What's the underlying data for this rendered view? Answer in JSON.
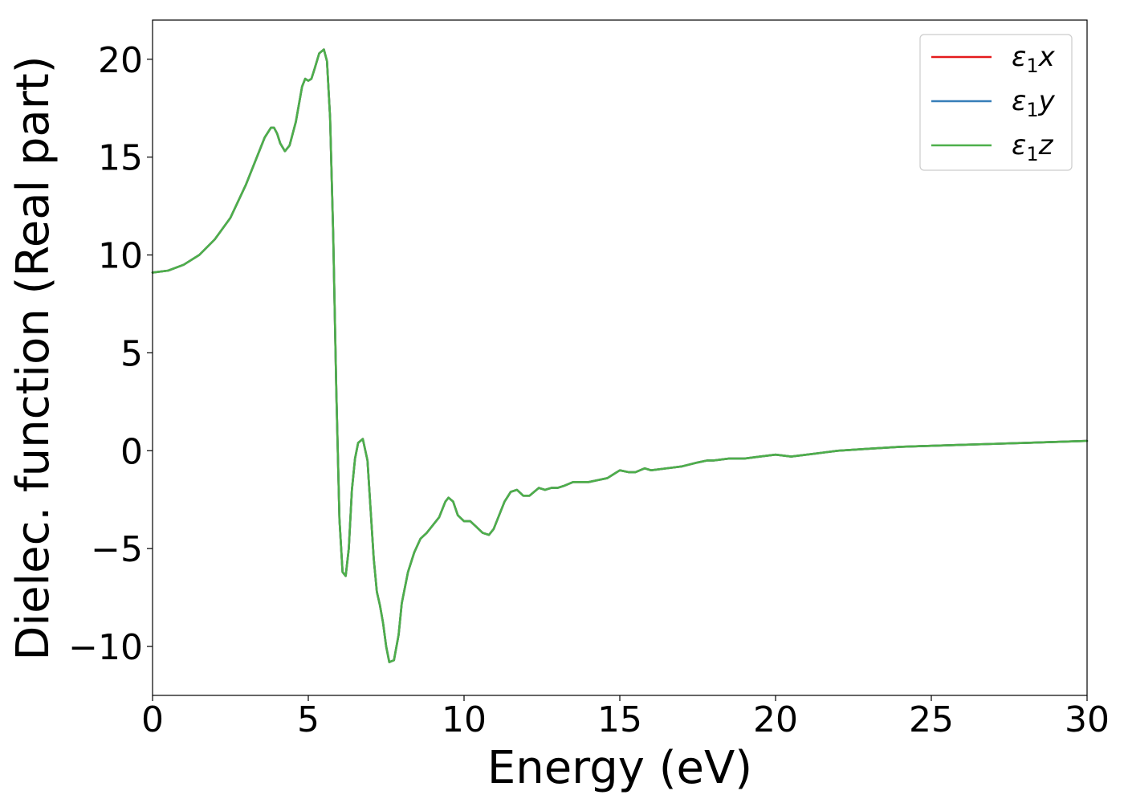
{
  "chart_data": {
    "type": "line",
    "title": "",
    "xlabel": "Energy (eV)",
    "ylabel": "Dielec. function (Real part)",
    "xlim": [
      0,
      30
    ],
    "ylim": [
      -12.5,
      22
    ],
    "xticks": [
      0,
      5,
      10,
      15,
      20,
      25,
      30
    ],
    "xtick_labels": [
      "0",
      "5",
      "10",
      "15",
      "20",
      "25",
      "30"
    ],
    "yticks": [
      -10,
      -5,
      0,
      5,
      10,
      15,
      20
    ],
    "ytick_labels": [
      "−10",
      "−5",
      "0",
      "5",
      "10",
      "15",
      "20"
    ],
    "grid": false,
    "legend_position": "top-right",
    "x": [
      0,
      0.5,
      1,
      1.5,
      2,
      2.5,
      3,
      3.3,
      3.6,
      3.8,
      3.9,
      4.0,
      4.1,
      4.25,
      4.4,
      4.6,
      4.8,
      4.9,
      5.0,
      5.1,
      5.2,
      5.35,
      5.5,
      5.6,
      5.7,
      5.8,
      5.9,
      6.0,
      6.1,
      6.2,
      6.3,
      6.4,
      6.5,
      6.6,
      6.75,
      6.9,
      7.0,
      7.1,
      7.2,
      7.3,
      7.4,
      7.5,
      7.6,
      7.75,
      7.9,
      8.0,
      8.2,
      8.4,
      8.6,
      8.8,
      9.0,
      9.2,
      9.4,
      9.5,
      9.65,
      9.8,
      10.0,
      10.2,
      10.4,
      10.6,
      10.8,
      10.95,
      11.1,
      11.3,
      11.5,
      11.7,
      11.9,
      12.1,
      12.4,
      12.6,
      12.8,
      13.0,
      13.2,
      13.5,
      13.8,
      14.0,
      14.3,
      14.6,
      15.0,
      15.3,
      15.5,
      15.8,
      16.0,
      16.5,
      17.0,
      17.5,
      17.8,
      18.0,
      18.5,
      19.0,
      19.5,
      20.0,
      20.5,
      21.0,
      21.5,
      22.0,
      23.0,
      24.0,
      25.0,
      26.0,
      27.0,
      28.0,
      29.0,
      30.0
    ],
    "series": [
      {
        "name": "ε₁x",
        "label_main": "ε",
        "label_sub": "1",
        "label_suffix": "x",
        "color": "#e41a1c",
        "values": [
          9.1,
          9.2,
          9.5,
          10.0,
          10.8,
          11.9,
          13.6,
          14.8,
          16.0,
          16.5,
          16.5,
          16.2,
          15.7,
          15.3,
          15.6,
          16.8,
          18.6,
          19.0,
          18.9,
          19.0,
          19.5,
          20.3,
          20.5,
          19.9,
          17.0,
          11.0,
          3.0,
          -3.5,
          -6.2,
          -6.4,
          -5.0,
          -2.0,
          -0.4,
          0.4,
          0.6,
          -0.5,
          -3.0,
          -5.5,
          -7.2,
          -7.9,
          -8.8,
          -10.0,
          -10.8,
          -10.7,
          -9.4,
          -7.8,
          -6.2,
          -5.2,
          -4.5,
          -4.2,
          -3.8,
          -3.4,
          -2.6,
          -2.4,
          -2.6,
          -3.3,
          -3.6,
          -3.6,
          -3.9,
          -4.2,
          -4.3,
          -4.0,
          -3.4,
          -2.6,
          -2.1,
          -2.0,
          -2.3,
          -2.3,
          -1.9,
          -2.0,
          -1.9,
          -1.9,
          -1.8,
          -1.6,
          -1.6,
          -1.6,
          -1.5,
          -1.4,
          -1.0,
          -1.1,
          -1.1,
          -0.9,
          -1.0,
          -0.9,
          -0.8,
          -0.6,
          -0.5,
          -0.5,
          -0.4,
          -0.4,
          -0.3,
          -0.2,
          -0.3,
          -0.2,
          -0.1,
          0.0,
          0.1,
          0.2,
          0.25,
          0.3,
          0.35,
          0.4,
          0.45,
          0.5
        ]
      },
      {
        "name": "ε₁y",
        "label_main": "ε",
        "label_sub": "1",
        "label_suffix": "y",
        "color": "#377eb8",
        "values": [
          9.1,
          9.2,
          9.5,
          10.0,
          10.8,
          11.9,
          13.6,
          14.8,
          16.0,
          16.5,
          16.5,
          16.2,
          15.7,
          15.3,
          15.6,
          16.8,
          18.6,
          19.0,
          18.9,
          19.0,
          19.5,
          20.3,
          20.5,
          19.9,
          17.0,
          11.0,
          3.0,
          -3.5,
          -6.2,
          -6.4,
          -5.0,
          -2.0,
          -0.4,
          0.4,
          0.6,
          -0.5,
          -3.0,
          -5.5,
          -7.2,
          -7.9,
          -8.8,
          -10.0,
          -10.8,
          -10.7,
          -9.4,
          -7.8,
          -6.2,
          -5.2,
          -4.5,
          -4.2,
          -3.8,
          -3.4,
          -2.6,
          -2.4,
          -2.6,
          -3.3,
          -3.6,
          -3.6,
          -3.9,
          -4.2,
          -4.3,
          -4.0,
          -3.4,
          -2.6,
          -2.1,
          -2.0,
          -2.3,
          -2.3,
          -1.9,
          -2.0,
          -1.9,
          -1.9,
          -1.8,
          -1.6,
          -1.6,
          -1.6,
          -1.5,
          -1.4,
          -1.0,
          -1.1,
          -1.1,
          -0.9,
          -1.0,
          -0.9,
          -0.8,
          -0.6,
          -0.5,
          -0.5,
          -0.4,
          -0.4,
          -0.3,
          -0.2,
          -0.3,
          -0.2,
          -0.1,
          0.0,
          0.1,
          0.2,
          0.25,
          0.3,
          0.35,
          0.4,
          0.45,
          0.5
        ]
      },
      {
        "name": "ε₁z",
        "label_main": "ε",
        "label_sub": "1",
        "label_suffix": "z",
        "color": "#4daf4a",
        "values": [
          9.1,
          9.2,
          9.5,
          10.0,
          10.8,
          11.9,
          13.6,
          14.8,
          16.0,
          16.5,
          16.5,
          16.2,
          15.7,
          15.3,
          15.6,
          16.8,
          18.6,
          19.0,
          18.9,
          19.0,
          19.5,
          20.3,
          20.5,
          19.9,
          17.0,
          11.0,
          3.0,
          -3.5,
          -6.2,
          -6.4,
          -5.0,
          -2.0,
          -0.4,
          0.4,
          0.6,
          -0.5,
          -3.0,
          -5.5,
          -7.2,
          -7.9,
          -8.8,
          -10.0,
          -10.8,
          -10.7,
          -9.4,
          -7.8,
          -6.2,
          -5.2,
          -4.5,
          -4.2,
          -3.8,
          -3.4,
          -2.6,
          -2.4,
          -2.6,
          -3.3,
          -3.6,
          -3.6,
          -3.9,
          -4.2,
          -4.3,
          -4.0,
          -3.4,
          -2.6,
          -2.1,
          -2.0,
          -2.3,
          -2.3,
          -1.9,
          -2.0,
          -1.9,
          -1.9,
          -1.8,
          -1.6,
          -1.6,
          -1.6,
          -1.5,
          -1.4,
          -1.0,
          -1.1,
          -1.1,
          -0.9,
          -1.0,
          -0.9,
          -0.8,
          -0.6,
          -0.5,
          -0.5,
          -0.4,
          -0.4,
          -0.3,
          -0.2,
          -0.3,
          -0.2,
          -0.1,
          0.0,
          0.1,
          0.2,
          0.25,
          0.3,
          0.35,
          0.4,
          0.45,
          0.5
        ]
      }
    ]
  }
}
